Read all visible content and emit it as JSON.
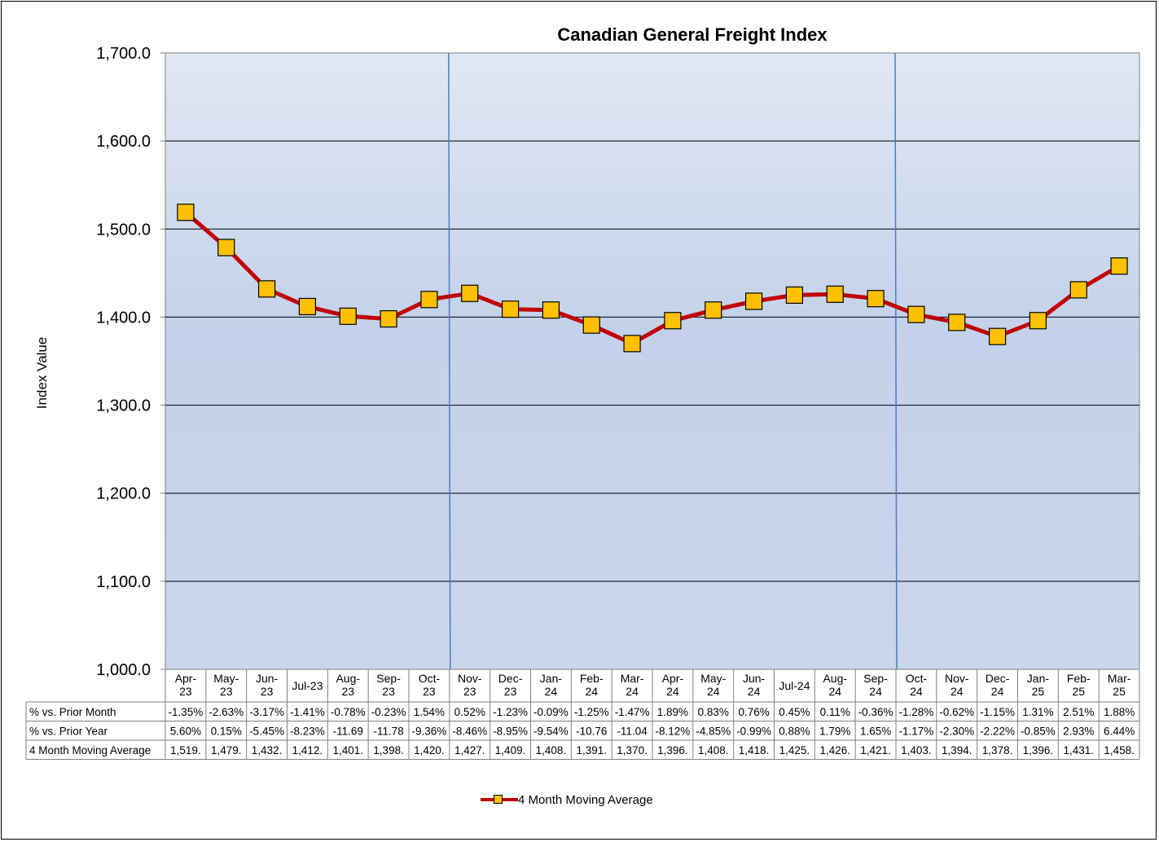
{
  "chart_data": {
    "type": "line",
    "title": "Canadian General Freight Index",
    "ylabel": "Index Value",
    "xlabel": "",
    "ylim": [
      1000,
      1700
    ],
    "yticks": [
      "1,000.0",
      "1,100.0",
      "1,200.0",
      "1,300.0",
      "1,400.0",
      "1,500.0",
      "1,600.0",
      "1,700.0"
    ],
    "grid": true,
    "legend_position": "bottom",
    "categories": [
      [
        "Apr-",
        "23"
      ],
      [
        "May-",
        "23"
      ],
      [
        "Jun-",
        "23"
      ],
      [
        "Jul-23"
      ],
      [
        "Aug-",
        "23"
      ],
      [
        "Sep-",
        "23"
      ],
      [
        "Oct-",
        "23"
      ],
      [
        "Nov-",
        "23"
      ],
      [
        "Dec-",
        "23"
      ],
      [
        "Jan-",
        "24"
      ],
      [
        "Feb-",
        "24"
      ],
      [
        "Mar-",
        "24"
      ],
      [
        "Apr-",
        "24"
      ],
      [
        "May-",
        "24"
      ],
      [
        "Jun-",
        "24"
      ],
      [
        "Jul-24"
      ],
      [
        "Aug-",
        "24"
      ],
      [
        "Sep-",
        "24"
      ],
      [
        "Oct-",
        "24"
      ],
      [
        "Nov-",
        "24"
      ],
      [
        "Dec-",
        "24"
      ],
      [
        "Jan-",
        "25"
      ],
      [
        "Feb-",
        "25"
      ],
      [
        "Mar-",
        "25"
      ]
    ],
    "series": [
      {
        "name": "4 Month Moving Average",
        "color": "#c00000",
        "marker_color": "#ffc000",
        "values": [
          1519,
          1479,
          1432,
          1412,
          1401,
          1398,
          1420,
          1427,
          1409,
          1408,
          1391,
          1370,
          1396,
          1408,
          1418,
          1425,
          1426,
          1421,
          1403,
          1394,
          1378,
          1396,
          1431,
          1458
        ]
      }
    ],
    "vertical_markers_after_category": [
      6,
      17
    ],
    "table": {
      "rows": [
        {
          "label": "% vs. Prior Month",
          "cells": [
            "-1.35%",
            "-2.63%",
            "-3.17%",
            "-1.41%",
            "-0.78%",
            "-0.23%",
            "1.54%",
            "0.52%",
            "-1.23%",
            "-0.09%",
            "-1.25%",
            "-1.47%",
            "1.89%",
            "0.83%",
            "0.76%",
            "0.45%",
            "0.11%",
            "-0.36%",
            "-1.28%",
            "-0.62%",
            "-1.15%",
            "1.31%",
            "2.51%",
            "1.88%"
          ]
        },
        {
          "label": "% vs. Prior Year",
          "cells": [
            "5.60%",
            "0.15%",
            "-5.45%",
            "-8.23%",
            "-11.69",
            "-11.78",
            "-9.36%",
            "-8.46%",
            "-8.95%",
            "-9.54%",
            "-10.76",
            "-11.04",
            "-8.12%",
            "-4.85%",
            "-0.99%",
            "0.88%",
            "1.79%",
            "1.65%",
            "-1.17%",
            "-2.30%",
            "-2.22%",
            "-0.85%",
            "2.93%",
            "6.44%"
          ]
        },
        {
          "label": "4 Month Moving Average",
          "cells": [
            "1,519.",
            "1,479.",
            "1,432.",
            "1,412.",
            "1,401.",
            "1,398.",
            "1,420.",
            "1,427.",
            "1,409.",
            "1,408.",
            "1,391.",
            "1,370.",
            "1,396.",
            "1,408.",
            "1,418.",
            "1,425.",
            "1,426.",
            "1,421.",
            "1,403.",
            "1,394.",
            "1,378.",
            "1,396.",
            "1,431.",
            "1,458."
          ]
        }
      ]
    }
  }
}
